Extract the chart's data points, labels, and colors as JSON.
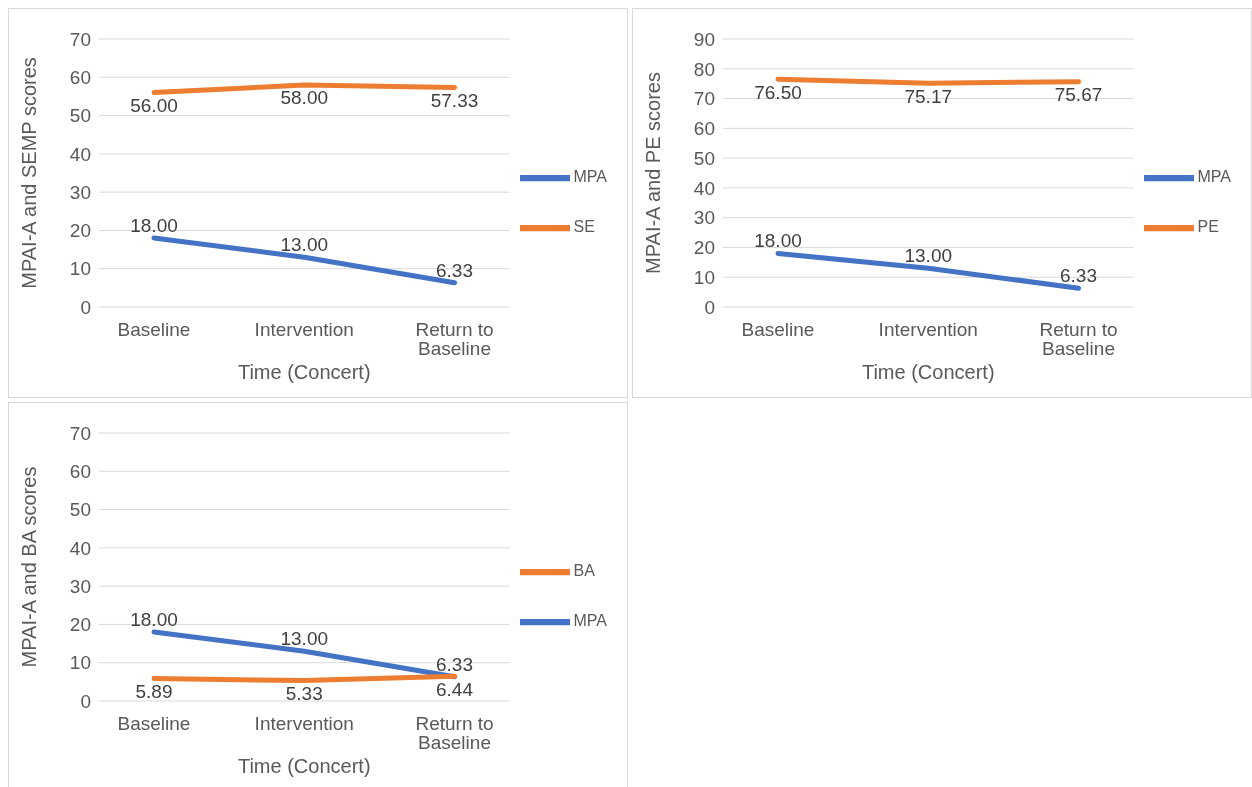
{
  "chart_data": [
    {
      "type": "line",
      "categories": [
        "Baseline",
        "Intervention",
        "Return to Baseline"
      ],
      "xlabel": "Time (Concert)",
      "ylabel": "MPAI-A and SEMP scores",
      "ylim": [
        0,
        70
      ],
      "yticks": [
        0,
        10,
        20,
        30,
        40,
        50,
        60,
        70
      ],
      "grid": "y",
      "legend": "right",
      "marker": "none",
      "series": [
        {
          "name": "MPA",
          "color": "#4472c4",
          "values": [
            18.0,
            13.0,
            6.33
          ],
          "value_labels": [
            "18.00",
            "13.00",
            "6.33"
          ]
        },
        {
          "name": "SE",
          "color": "#ed7d31",
          "values": [
            56.0,
            58.0,
            57.33
          ],
          "value_labels": [
            "56.00",
            "58.00",
            "57.33"
          ]
        }
      ]
    },
    {
      "type": "line",
      "categories": [
        "Baseline",
        "Intervention",
        "Return to Baseline"
      ],
      "xlabel": "Time (Concert)",
      "ylabel": "MPAI-A and PE scores",
      "ylim": [
        0,
        90
      ],
      "yticks": [
        0,
        10,
        20,
        30,
        40,
        50,
        60,
        70,
        80,
        90
      ],
      "grid": "y",
      "legend": "right",
      "marker": "none",
      "series": [
        {
          "name": "MPA",
          "color": "#4472c4",
          "values": [
            18.0,
            13.0,
            6.33
          ],
          "value_labels": [
            "18.00",
            "13.00",
            "6.33"
          ]
        },
        {
          "name": "PE",
          "color": "#ed7d31",
          "values": [
            76.5,
            75.17,
            75.67
          ],
          "value_labels": [
            "76.50",
            "75.17",
            "75.67"
          ]
        }
      ]
    },
    {
      "type": "line",
      "categories": [
        "Baseline",
        "Intervention",
        "Return to Baseline"
      ],
      "xlabel": "Time (Concert)",
      "ylabel": "MPAI-A and BA scores",
      "ylim": [
        0,
        70
      ],
      "yticks": [
        0,
        10,
        20,
        30,
        40,
        50,
        60,
        70
      ],
      "grid": "y",
      "legend": "right",
      "marker": "none",
      "series": [
        {
          "name": "MPA",
          "color": "#4472c4",
          "values": [
            18.0,
            13.0,
            6.33
          ],
          "value_labels": [
            "18.00",
            "13.00",
            "6.33"
          ]
        },
        {
          "name": "BA",
          "color": "#ed7d31",
          "values": [
            5.89,
            5.33,
            6.44
          ],
          "value_labels": [
            "5.89",
            "5.33",
            "6.44"
          ]
        }
      ]
    }
  ]
}
